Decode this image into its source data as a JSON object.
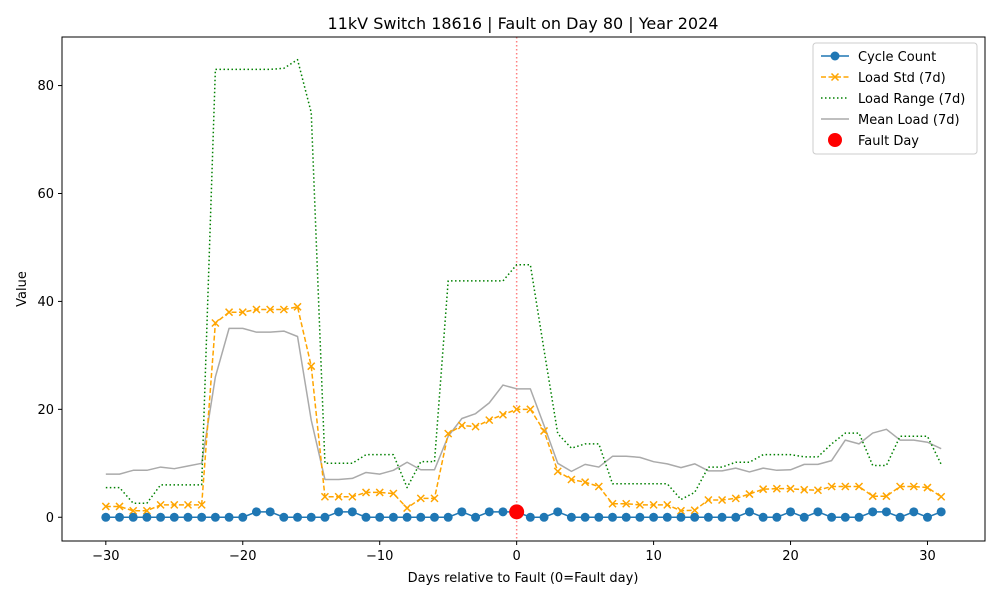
{
  "chart_data": {
    "type": "line",
    "title": "11kV Switch 18616 | Fault on Day 80 | Year 2024",
    "xlabel": "Days relative to Fault (0=Fault day)",
    "ylabel": "Value",
    "xlim": [
      -33.2,
      34.2
    ],
    "ylim": [
      -4.4,
      89
    ],
    "xticks": [
      -30,
      -20,
      -10,
      0,
      10,
      20,
      30
    ],
    "yticks": [
      0,
      20,
      40,
      60,
      80
    ],
    "legend_position": "top-right",
    "x": [
      -30,
      -29,
      -28,
      -27,
      -26,
      -25,
      -24,
      -23,
      -22,
      -21,
      -20,
      -19,
      -18,
      -17,
      -16,
      -15,
      -14,
      -13,
      -12,
      -11,
      -10,
      -9,
      -8,
      -7,
      -6,
      -5,
      -4,
      -3,
      -2,
      -1,
      0,
      1,
      2,
      3,
      4,
      5,
      6,
      7,
      8,
      9,
      10,
      11,
      12,
      13,
      14,
      15,
      16,
      17,
      18,
      19,
      20,
      21,
      22,
      23,
      24,
      25,
      26,
      27,
      28,
      29,
      30,
      31
    ],
    "series": [
      {
        "name": "Cycle Count",
        "color": "#1f77b4",
        "style": "solid-circle",
        "values": [
          0,
          0,
          0,
          0,
          0,
          0,
          0,
          0,
          0,
          0,
          0,
          1,
          1,
          0,
          0,
          0,
          0,
          1,
          1,
          0,
          0,
          0,
          0,
          0,
          0,
          0,
          1,
          0,
          1,
          1,
          1,
          0,
          0,
          1,
          0,
          0,
          0,
          0,
          0,
          0,
          0,
          0,
          0,
          0,
          0,
          0,
          0,
          1,
          0,
          0,
          1,
          0,
          1,
          0,
          0,
          0,
          1,
          1,
          0,
          1,
          0,
          1
        ]
      },
      {
        "name": "Load Std (7d)",
        "color": "#ffa500",
        "style": "dashed-x",
        "values": [
          2,
          2,
          1.2,
          1.2,
          2.3,
          2.3,
          2.3,
          2.3,
          36,
          38,
          38,
          38.5,
          38.5,
          38.5,
          39,
          28,
          3.8,
          3.8,
          3.8,
          4.6,
          4.6,
          4.4,
          1.7,
          3.5,
          3.5,
          15.5,
          17,
          16.8,
          18,
          19,
          20,
          20,
          16,
          8.5,
          7,
          6.5,
          5.7,
          2.5,
          2.5,
          2.3,
          2.3,
          2.3,
          1.2,
          1.3,
          3.2,
          3.2,
          3.5,
          4.3,
          5.2,
          5.3,
          5.3,
          5.1,
          5,
          5.7,
          5.7,
          5.7,
          3.9,
          3.9,
          5.7,
          5.7,
          5.5,
          3.8
        ]
      },
      {
        "name": "Load Range (7d)",
        "color": "#008000",
        "style": "dotted",
        "values": [
          5.5,
          5.5,
          2.6,
          2.6,
          6,
          6,
          6,
          6,
          83,
          83,
          83,
          83,
          83,
          83.2,
          84.8,
          75,
          10,
          10,
          10,
          11.6,
          11.6,
          11.6,
          5.5,
          10.3,
          10.3,
          43.8,
          43.8,
          43.8,
          43.8,
          43.8,
          46.8,
          46.8,
          31,
          15.5,
          12.8,
          13.6,
          13.6,
          6.2,
          6.2,
          6.2,
          6.2,
          6.2,
          3.3,
          4.6,
          9.3,
          9.3,
          10.2,
          10.2,
          11.6,
          11.6,
          11.6,
          11.2,
          11.2,
          13.6,
          15.6,
          15.6,
          9.6,
          9.6,
          15,
          15,
          15,
          9.8
        ]
      },
      {
        "name": "Mean Load (7d)",
        "color": "#aaaaaa",
        "style": "solid",
        "values": [
          8,
          8,
          8.7,
          8.7,
          9.3,
          9,
          9.5,
          10,
          26,
          35,
          35,
          34.3,
          34.3,
          34.5,
          33.5,
          18,
          7,
          7,
          7.2,
          8.3,
          8,
          8.7,
          10.2,
          8.8,
          8.8,
          15,
          18.3,
          19.2,
          21.2,
          24.5,
          23.8,
          23.8,
          17,
          10,
          8.5,
          9.8,
          9.3,
          11.3,
          11.3,
          11.1,
          10.3,
          9.9,
          9.2,
          9.9,
          8.6,
          8.6,
          9.1,
          8.4,
          9.1,
          8.7,
          8.8,
          9.8,
          9.8,
          10.5,
          14.3,
          13.6,
          15.6,
          16.3,
          14.3,
          14.3,
          13.9,
          12.7
        ]
      }
    ],
    "fault_marker": {
      "name": "Fault Day",
      "x": 0,
      "y": 1,
      "color": "#ff0000"
    },
    "vline": {
      "x": 0,
      "color": "#ff0000"
    }
  }
}
